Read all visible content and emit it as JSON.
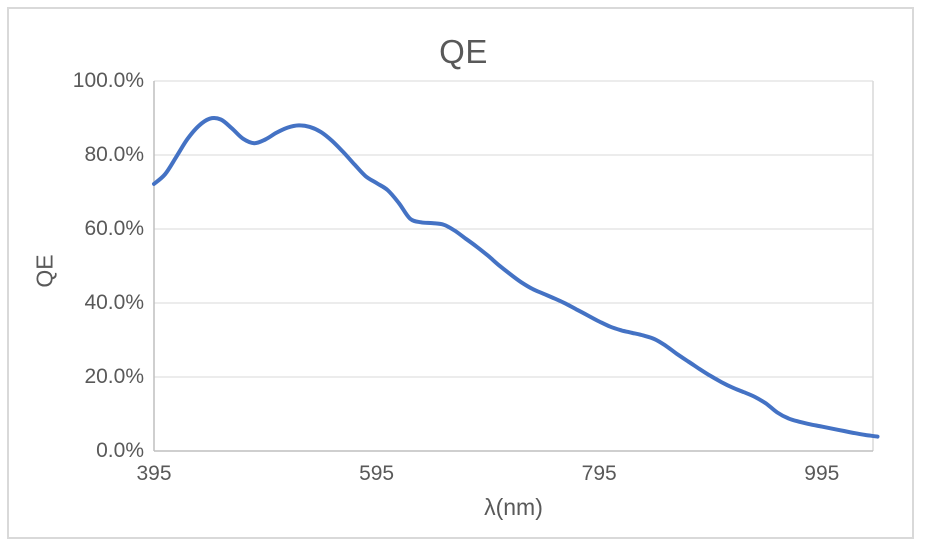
{
  "chart_data": {
    "type": "line",
    "title": "QE",
    "xlabel": "λ(nm)",
    "ylabel": "QE",
    "series_name": "QE",
    "x": [
      395,
      405,
      415,
      425,
      435,
      445,
      455,
      465,
      475,
      485,
      495,
      505,
      515,
      525,
      535,
      545,
      555,
      565,
      575,
      585,
      595,
      605,
      615,
      625,
      635,
      645,
      655,
      665,
      675,
      685,
      695,
      705,
      715,
      725,
      735,
      745,
      755,
      765,
      775,
      785,
      795,
      805,
      815,
      825,
      835,
      845,
      855,
      865,
      875,
      885,
      895,
      905,
      915,
      925,
      935,
      945,
      955,
      965,
      975,
      985,
      995,
      1005,
      1015,
      1025,
      1035,
      1045
    ],
    "values": [
      72.2,
      74.8,
      79.5,
      84.3,
      87.8,
      89.8,
      89.6,
      87.2,
      84.4,
      83.2,
      84.2,
      86.0,
      87.4,
      88.0,
      87.6,
      86.2,
      83.8,
      80.8,
      77.5,
      74.3,
      72.4,
      70.5,
      67.0,
      62.8,
      61.8,
      61.6,
      61.2,
      59.6,
      57.4,
      55.2,
      52.8,
      50.2,
      47.8,
      45.6,
      43.8,
      42.5,
      41.2,
      39.8,
      38.2,
      36.6,
      35.0,
      33.6,
      32.6,
      31.9,
      31.2,
      30.2,
      28.4,
      26.2,
      24.2,
      22.2,
      20.3,
      18.6,
      17.1,
      15.9,
      14.6,
      12.8,
      10.4,
      8.8,
      7.9,
      7.2,
      6.6,
      6.0,
      5.4,
      4.8,
      4.3,
      3.9
    ],
    "x_ticks": [
      {
        "label": "395",
        "value": 395
      },
      {
        "label": "595",
        "value": 595
      },
      {
        "label": "795",
        "value": 795
      },
      {
        "label": "995",
        "value": 995
      }
    ],
    "y_ticks": [
      {
        "label": "0.0%",
        "value": 0
      },
      {
        "label": "20.0%",
        "value": 20
      },
      {
        "label": "40.0%",
        "value": 40
      },
      {
        "label": "60.0%",
        "value": 60
      },
      {
        "label": "80.0%",
        "value": 80
      },
      {
        "label": "100.0%",
        "value": 100
      }
    ],
    "xlim": [
      395,
      1041
    ],
    "ylim": [
      0,
      100
    ],
    "grid": "horizontal",
    "legend": "none",
    "smooth": true,
    "line_color": "#4472C4",
    "gridline_color": "#D9D9D9",
    "plot_border_color": "#D9D9D9",
    "axis_line_color": "#BFBFBF",
    "text_color": "#595959",
    "frame_color": "#D9D9D9"
  }
}
